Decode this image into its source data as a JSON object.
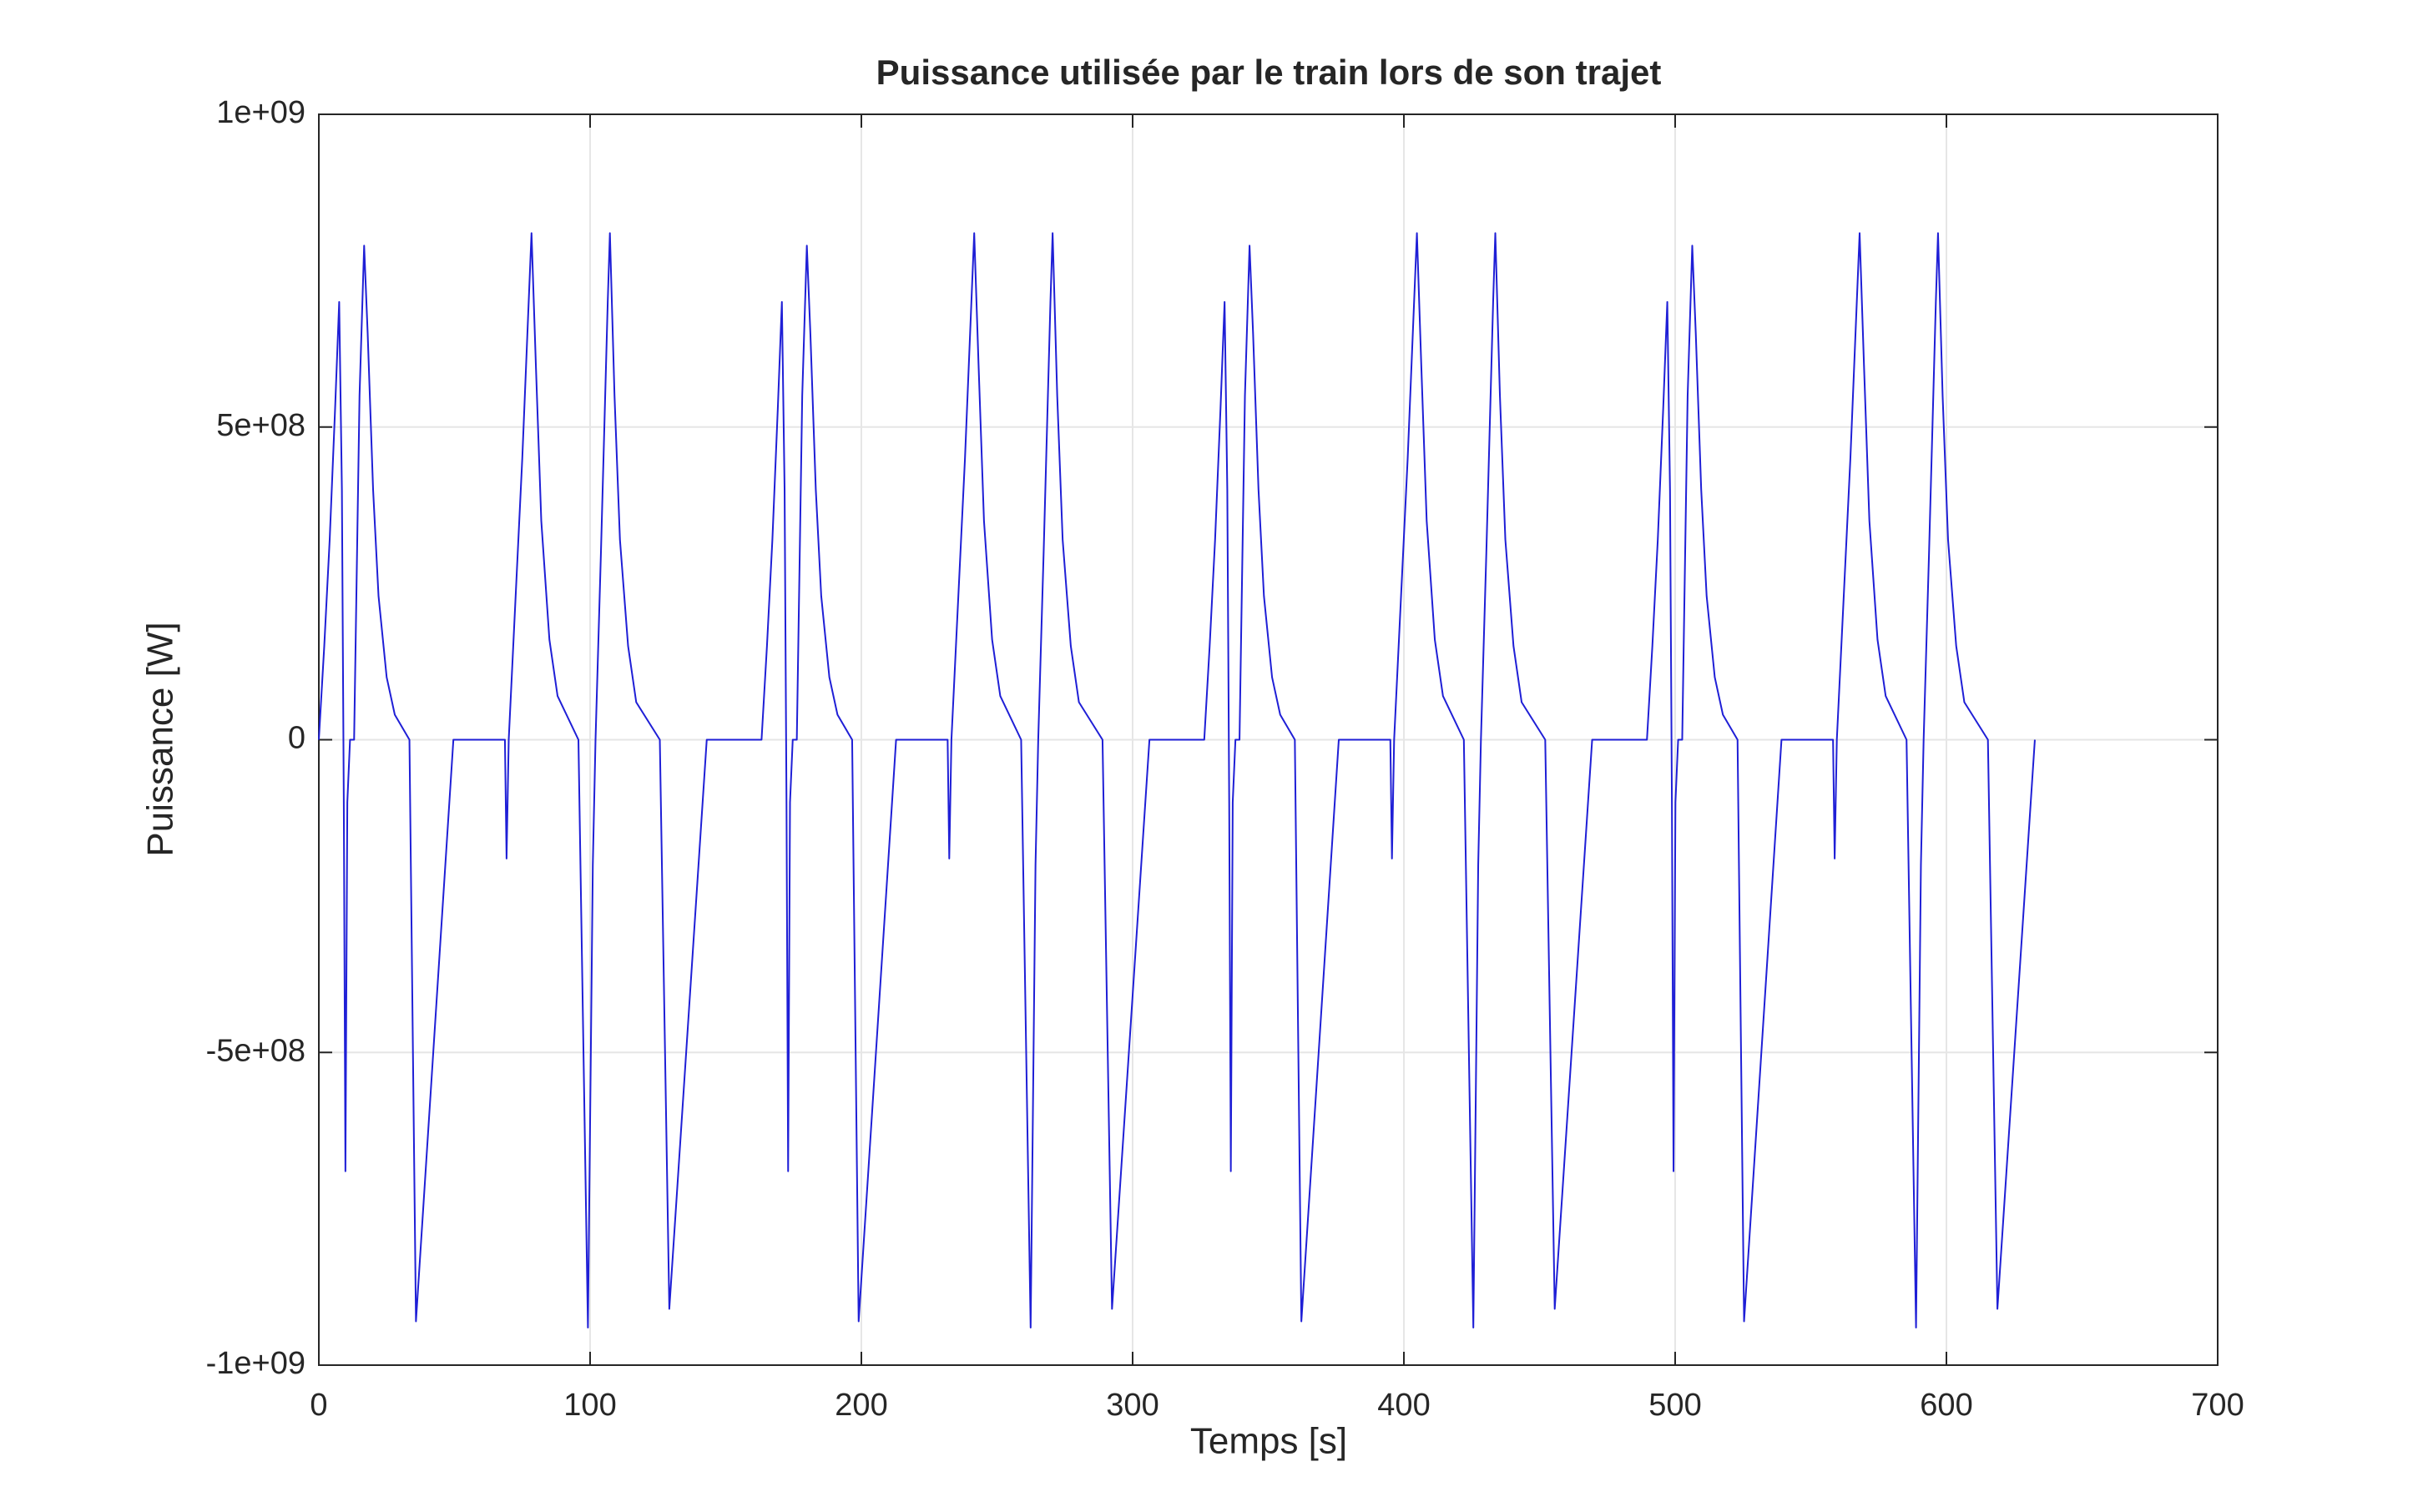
{
  "chart_data": {
    "type": "line",
    "title": "Puissance utilisée par le train lors de son trajet",
    "xlabel": "Temps [s]",
    "ylabel": "Puissance [W]",
    "xlim": [
      0,
      700
    ],
    "ylim": [
      -1000000000.0,
      1000000000.0
    ],
    "xticks": [
      0,
      100,
      200,
      300,
      400,
      500,
      600,
      700
    ],
    "yticks": [
      {
        "value": -1000000000.0,
        "label": "-1e+09"
      },
      {
        "value": -500000000.0,
        "label": "-5e+08"
      },
      0,
      {
        "value": 500000000.0,
        "label": "5e+08"
      },
      {
        "value": 1000000000.0,
        "label": "1e+09"
      }
    ],
    "grid": true,
    "x": [
      0,
      2,
      4,
      6,
      7.5,
      8.5,
      9.2,
      9.8,
      10.5,
      11.5,
      13,
      15,
      16.7,
      18,
      20,
      22,
      25,
      28,
      33.4,
      35.8,
      49.6,
      68.6,
      69.2,
      70,
      72,
      75,
      78.4,
      80,
      82,
      85,
      88,
      95.7,
      99.2,
      101,
      102,
      104,
      106.5,
      107.3,
      109,
      111,
      114,
      117,
      125.7,
      129.2,
      143,
      163.2,
      165.2,
      167.2,
      169.2,
      170.7,
      171.7,
      172.4,
      173,
      173.7,
      174.7,
      176.2,
      178.2,
      179.9,
      181.2,
      183.2,
      185.2,
      188.2,
      191.2,
      196.6,
      199,
      212.8,
      231.8,
      232.4,
      233.2,
      235.2,
      238.2,
      241.6,
      243.2,
      245.2,
      248.2,
      251.2,
      258.9,
      262.4,
      264.2,
      265.2,
      267.2,
      269.7,
      270.5,
      272.2,
      274.2,
      277.2,
      280.2,
      288.9,
      292.4,
      306.2,
      326.4,
      328.4,
      330.4,
      332.4,
      333.9,
      334.9,
      335.6,
      336.2,
      336.9,
      337.9,
      339.4,
      341.4,
      343.1,
      344.4,
      346.4,
      348.4,
      351.4,
      354.4,
      359.8,
      362.2,
      376,
      395,
      395.6,
      396.4,
      398.4,
      401.4,
      404.8,
      406.4,
      408.4,
      411.4,
      414.4,
      422.1,
      425.6,
      427.4,
      428.4,
      430.4,
      432.9,
      433.7,
      435.4,
      437.4,
      440.4,
      443.4,
      452.1,
      455.6,
      469.4,
      489.6,
      491.6,
      493.6,
      495.6,
      497.1,
      498.1,
      498.8,
      499.4,
      500.1,
      501.1,
      502.6,
      504.6,
      506.3,
      507.6,
      509.6,
      511.6,
      514.6,
      517.6,
      523,
      525.4,
      539.2,
      558.2,
      558.8,
      559.6,
      561.6,
      564.6,
      568,
      569.6,
      571.6,
      574.6,
      577.6,
      585.3,
      588.8,
      590.6,
      591.6,
      593.6,
      596.1,
      596.9,
      598.6,
      600.6,
      603.6,
      606.6,
      615.3,
      618.8,
      632.6
    ],
    "series": [
      {
        "color": "#1f1fd6",
        "values": [
          0,
          150000000.0,
          320000000.0,
          530000000.0,
          700000000.0,
          400000000.0,
          -100000000.0,
          -690000000.0,
          -100000000.0,
          0,
          0,
          550000000.0,
          790000000.0,
          650000000.0,
          400000000.0,
          230000000.0,
          100000000.0,
          40000000.0,
          0,
          -930000000.0,
          0,
          0,
          -190000000.0,
          0,
          180000000.0,
          450000000.0,
          810000000.0,
          600000000.0,
          350000000.0,
          160000000.0,
          70000000.0,
          0,
          -940000000.0,
          -200000000.0,
          0,
          300000000.0,
          700000000.0,
          810000000.0,
          550000000.0,
          320000000.0,
          150000000.0,
          60000000.0,
          0,
          -910000000.0,
          0,
          0,
          150000000.0,
          320000000.0,
          530000000.0,
          700000000.0,
          400000000.0,
          -100000000.0,
          -690000000.0,
          -100000000.0,
          0,
          0,
          550000000.0,
          790000000.0,
          650000000.0,
          400000000.0,
          230000000.0,
          100000000.0,
          40000000.0,
          0,
          -930000000.0,
          0,
          0,
          -190000000.0,
          0,
          180000000.0,
          450000000.0,
          810000000.0,
          600000000.0,
          350000000.0,
          160000000.0,
          70000000.0,
          0,
          -940000000.0,
          -200000000.0,
          0,
          300000000.0,
          700000000.0,
          810000000.0,
          550000000.0,
          320000000.0,
          150000000.0,
          60000000.0,
          0,
          -910000000.0,
          0,
          0,
          150000000.0,
          320000000.0,
          530000000.0,
          700000000.0,
          400000000.0,
          -100000000.0,
          -690000000.0,
          -100000000.0,
          0,
          0,
          550000000.0,
          790000000.0,
          650000000.0,
          400000000.0,
          230000000.0,
          100000000.0,
          40000000.0,
          0,
          -930000000.0,
          0,
          0,
          -190000000.0,
          0,
          180000000.0,
          450000000.0,
          810000000.0,
          600000000.0,
          350000000.0,
          160000000.0,
          70000000.0,
          0,
          -940000000.0,
          -200000000.0,
          0,
          300000000.0,
          700000000.0,
          810000000.0,
          550000000.0,
          320000000.0,
          150000000.0,
          60000000.0,
          0,
          -910000000.0,
          0,
          0,
          150000000.0,
          320000000.0,
          530000000.0,
          700000000.0,
          400000000.0,
          -100000000.0,
          -690000000.0,
          -100000000.0,
          0,
          0,
          550000000.0,
          790000000.0,
          650000000.0,
          400000000.0,
          230000000.0,
          100000000.0,
          40000000.0,
          0,
          -930000000.0,
          0,
          0,
          -190000000.0,
          0,
          180000000.0,
          450000000.0,
          810000000.0,
          600000000.0,
          350000000.0,
          160000000.0,
          70000000.0,
          0,
          -940000000.0,
          -200000000.0,
          0,
          300000000.0,
          700000000.0,
          810000000.0,
          550000000.0,
          320000000.0,
          150000000.0,
          60000000.0,
          0,
          -910000000.0,
          0
        ]
      }
    ]
  }
}
